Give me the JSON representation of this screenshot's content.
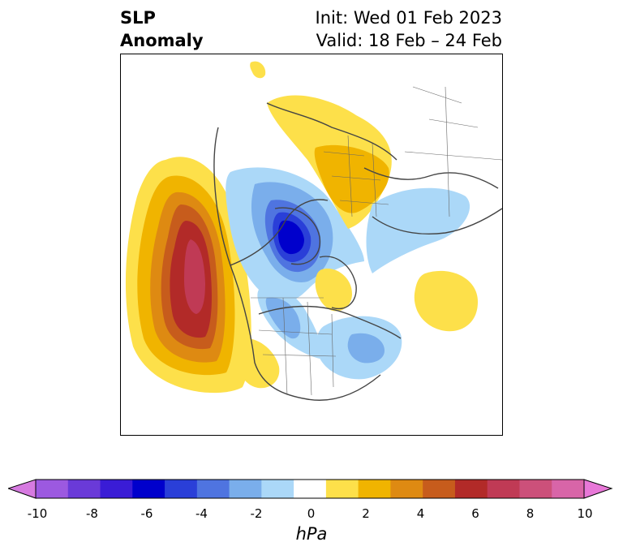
{
  "title": {
    "line1": "SLP",
    "line2": "Anomaly"
  },
  "subtitle": {
    "line1": "Init: Wed 01 Feb 2023",
    "line2": "Valid: 18 Feb – 24 Feb"
  },
  "colorbar": {
    "units": "hPa",
    "ticks": [
      "-10",
      "-8",
      "-6",
      "-4",
      "-2",
      "0",
      "2",
      "4",
      "6",
      "8",
      "10"
    ],
    "min": -10,
    "max": 10,
    "colors": [
      "#d67ae0",
      "#9c59e0",
      "#6a3ad8",
      "#3a1cd6",
      "#0000cc",
      "#2a3fd8",
      "#4f74e0",
      "#7aaeeb",
      "#abd8f8",
      "#ffffff",
      "#fde04a",
      "#f0b400",
      "#de8a12",
      "#c75c1c",
      "#b22a28",
      "#c03a55",
      "#cc507a",
      "#d865a8",
      "#e878d8"
    ]
  },
  "map": {
    "features": [
      {
        "name": "pacific-positive-anomaly",
        "value": 6
      },
      {
        "name": "canada-arctic-negative-anomaly",
        "value": -6
      },
      {
        "name": "eurasia-positive-anomaly",
        "value": 2
      },
      {
        "name": "siberia-negative-anomaly",
        "value": -2
      },
      {
        "name": "atlantic-positive-anomaly",
        "value": 1
      },
      {
        "name": "east-us-negative-anomaly",
        "value": -3
      }
    ]
  }
}
